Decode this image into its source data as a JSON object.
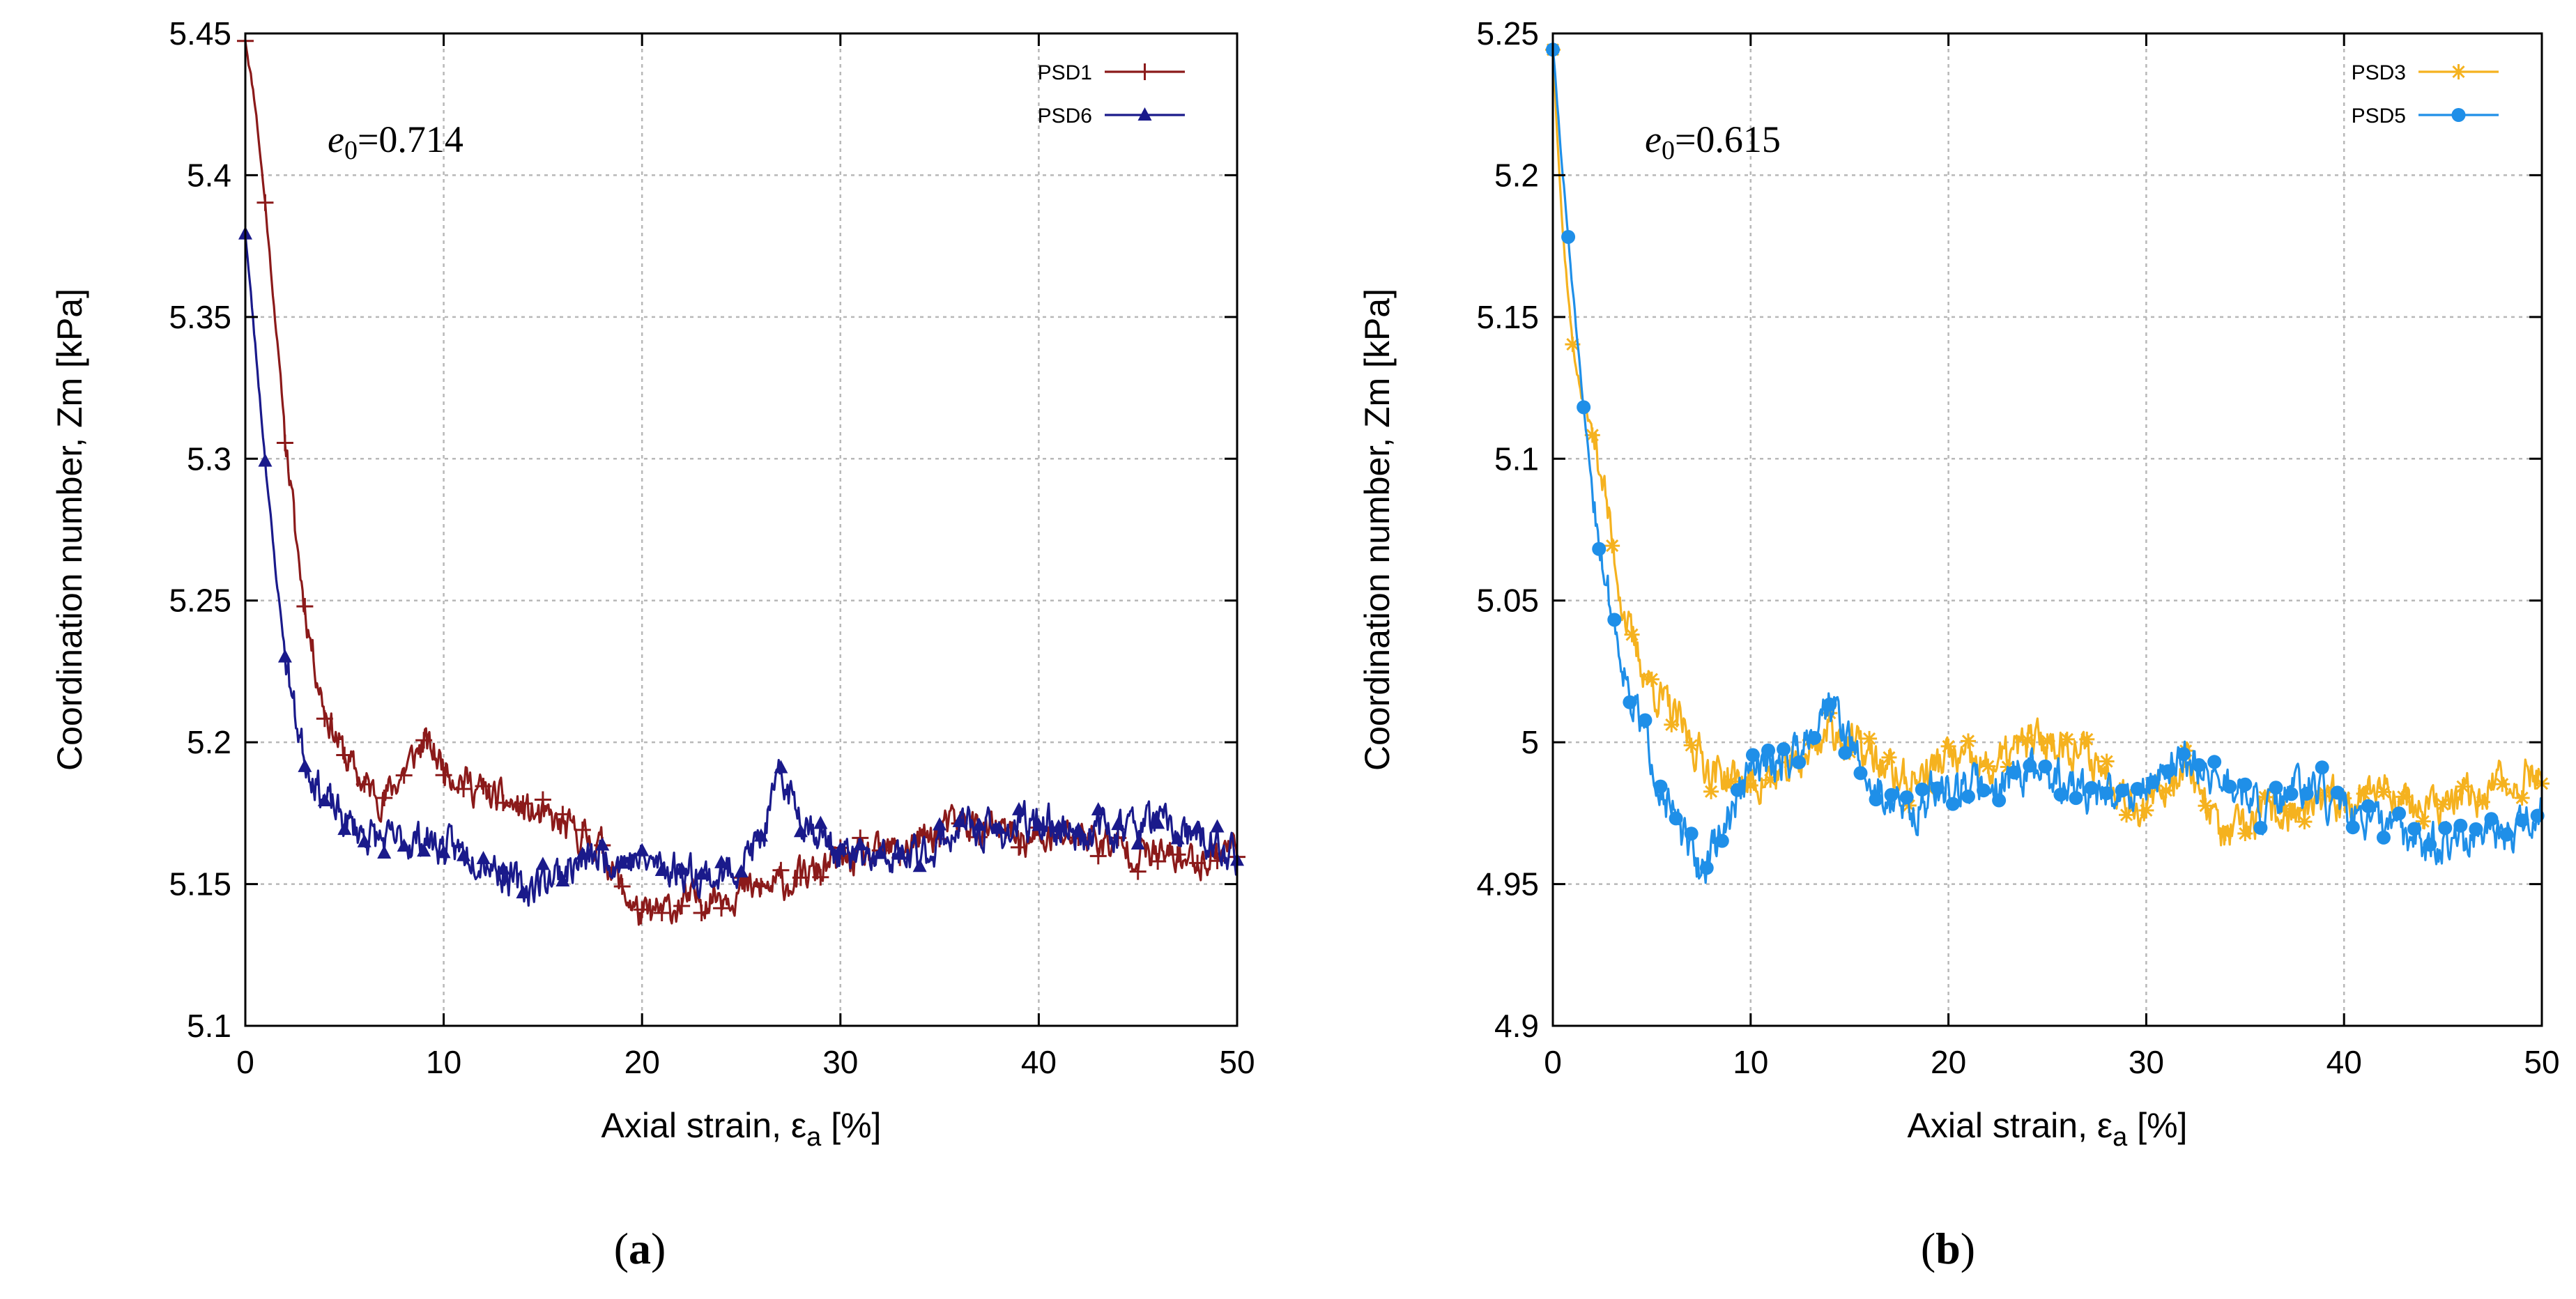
{
  "chart_data": [
    {
      "type": "line",
      "panel_label": "(a)",
      "annotation": {
        "symbol": "e",
        "sub": "0",
        "text": "=0.714"
      },
      "xlabel": "Axial strain,",
      "xlabel_symbol": "ε",
      "xlabel_sub": "a",
      "xlabel_unit": " [%]",
      "ylabel": "Coordination number, Zm [kPa]",
      "xlim": [
        0,
        50
      ],
      "ylim": [
        5.1,
        5.45
      ],
      "xticks": [
        0,
        10,
        20,
        30,
        40,
        50
      ],
      "xtick_labels": [
        "0",
        "10",
        "20",
        "30",
        "40",
        "50"
      ],
      "yticks": [
        5.1,
        5.15,
        5.2,
        5.25,
        5.3,
        5.35,
        5.4,
        5.45
      ],
      "ytick_labels": [
        "5.1",
        "5.15",
        "5.2",
        "5.25",
        "5.3",
        "5.35",
        "5.4",
        "5.45"
      ],
      "grid": true,
      "legend_position": "top-right",
      "series": [
        {
          "name": "PSD1",
          "color": "#8b1a1a",
          "marker": "plus",
          "noise": 0.011,
          "seed": 11,
          "x": [
            0,
            0.5,
            1,
            1.5,
            2,
            2.5,
            3,
            3.5,
            4,
            5,
            6,
            7,
            8,
            9,
            10,
            12,
            14,
            16,
            18,
            19,
            20,
            21,
            22,
            24,
            26,
            28,
            30,
            32,
            34,
            36,
            38,
            40,
            42,
            44,
            46,
            48,
            50
          ],
          "values": [
            5.448,
            5.425,
            5.39,
            5.35,
            5.31,
            5.275,
            5.248,
            5.228,
            5.212,
            5.195,
            5.185,
            5.18,
            5.19,
            5.2,
            5.192,
            5.182,
            5.176,
            5.17,
            5.163,
            5.148,
            5.138,
            5.14,
            5.143,
            5.147,
            5.148,
            5.152,
            5.158,
            5.16,
            5.165,
            5.172,
            5.168,
            5.165,
            5.168,
            5.163,
            5.16,
            5.158,
            5.165
          ]
        },
        {
          "name": "PSD6",
          "color": "#1a1a8b",
          "marker": "triangle",
          "noise": 0.012,
          "seed": 23,
          "x": [
            0,
            0.5,
            1,
            1.5,
            2,
            2.5,
            3,
            4,
            5,
            6,
            7,
            8,
            9,
            10,
            12,
            14,
            16,
            18,
            20,
            22,
            24,
            26,
            27,
            28,
            30,
            32,
            34,
            36,
            38,
            40,
            42,
            44,
            46,
            48,
            50
          ],
          "values": [
            5.38,
            5.34,
            5.3,
            5.262,
            5.232,
            5.21,
            5.195,
            5.18,
            5.172,
            5.168,
            5.165,
            5.165,
            5.166,
            5.163,
            5.16,
            5.148,
            5.155,
            5.16,
            5.158,
            5.155,
            5.152,
            5.165,
            5.188,
            5.175,
            5.16,
            5.158,
            5.16,
            5.17,
            5.168,
            5.172,
            5.168,
            5.17,
            5.172,
            5.165,
            5.16
          ]
        }
      ]
    },
    {
      "type": "line",
      "panel_label": "(b)",
      "annotation": {
        "symbol": "e",
        "sub": "0",
        "text": "=0.615"
      },
      "xlabel": "Axial strain,",
      "xlabel_symbol": "ε",
      "xlabel_sub": "a",
      "xlabel_unit": " [%]",
      "ylabel": "Coordination number, Zm [kPa]",
      "xlim": [
        0,
        50
      ],
      "ylim": [
        4.9,
        5.25
      ],
      "xticks": [
        0,
        10,
        20,
        30,
        40,
        50
      ],
      "xtick_labels": [
        "0",
        "10",
        "20",
        "30",
        "40",
        "50"
      ],
      "yticks": [
        4.9,
        4.95,
        5.0,
        5.05,
        5.1,
        5.15,
        5.2,
        5.25
      ],
      "ytick_labels": [
        "4.9",
        "4.95",
        "5",
        "5.05",
        "5.1",
        "5.15",
        "5.2",
        "5.25"
      ],
      "grid": true,
      "legend_position": "top-right",
      "series": [
        {
          "name": "PSD3",
          "color": "#f5b21f",
          "marker": "star",
          "noise": 0.013,
          "seed": 37,
          "x": [
            0,
            0.5,
            1,
            1.5,
            2,
            2.5,
            3,
            3.5,
            4,
            5,
            6,
            7,
            8,
            10,
            12,
            14,
            16,
            18,
            20,
            22,
            24,
            26,
            28,
            30,
            32,
            34,
            36,
            38,
            40,
            42,
            44,
            46,
            48,
            50
          ],
          "values": [
            5.245,
            5.18,
            5.14,
            5.12,
            5.11,
            5.095,
            5.07,
            5.05,
            5.035,
            5.02,
            5.01,
            5.0,
            4.99,
            4.985,
            4.99,
            5.005,
            4.995,
            4.985,
            4.995,
            4.99,
            5.0,
            5.0,
            4.99,
            4.975,
            4.995,
            4.965,
            4.975,
            4.975,
            4.98,
            4.985,
            4.975,
            4.98,
            4.985,
            4.99
          ]
        },
        {
          "name": "PSD5",
          "color": "#1f8fe8",
          "marker": "circle",
          "noise": 0.013,
          "seed": 51,
          "x": [
            0,
            0.5,
            1,
            1.5,
            2,
            2.5,
            3,
            3.5,
            4,
            5,
            6,
            7,
            7.5,
            8,
            9,
            10,
            12,
            14,
            16,
            18,
            20,
            22,
            24,
            26,
            28,
            30,
            32,
            34,
            36,
            38,
            40,
            42,
            44,
            46,
            48,
            50
          ],
          "values": [
            5.245,
            5.2,
            5.16,
            5.12,
            5.09,
            5.065,
            5.045,
            5.03,
            5.015,
            4.995,
            4.975,
            4.96,
            4.955,
            4.96,
            4.975,
            4.99,
            4.995,
            5.015,
            4.985,
            4.975,
            4.985,
            4.985,
            4.99,
            4.985,
            4.98,
            4.985,
            4.995,
            4.985,
            4.975,
            4.985,
            4.975,
            4.97,
            4.965,
            4.965,
            4.965,
            4.975
          ]
        }
      ]
    }
  ]
}
